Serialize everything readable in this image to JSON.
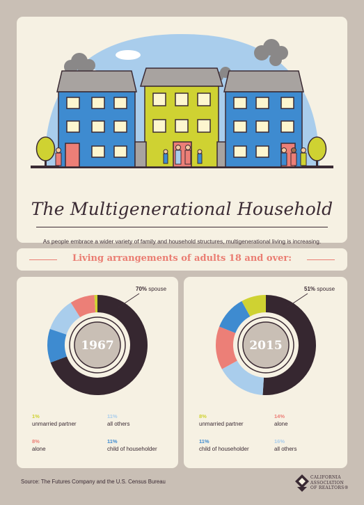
{
  "hero": {
    "title": "The Multigenerational Household",
    "intro": "As people embrace a wider variety of family and household structures, multigenerational living is increasing."
  },
  "banner": {
    "heading": "Living arrangements of adults 18 and over:"
  },
  "colors": {
    "spouse": "#362730",
    "child_of_householder": "#3e8bd0",
    "all_others": "#a9cdec",
    "alone": "#ec7f77",
    "unmarried_partner": "#cfd232",
    "accent": "#ea7d72",
    "card": "#f6f1e3",
    "background": "#c9bfb5"
  },
  "chart_data": [
    {
      "type": "pie",
      "title": "1967",
      "categories": [
        "spouse",
        "child of householder",
        "all others",
        "alone",
        "unmarried partner"
      ],
      "values": [
        70,
        11,
        11,
        8,
        1
      ],
      "annotation": "70% spouse",
      "legend": [
        {
          "pct": "1%",
          "label": "unmarried partner",
          "color": "#cfd232"
        },
        {
          "pct": "11%",
          "label": "all others",
          "color": "#a9cdec"
        },
        {
          "pct": "8%",
          "label": "alone",
          "color": "#ec7f77"
        },
        {
          "pct": "11%",
          "label": "child of householder",
          "color": "#3e8bd0"
        }
      ]
    },
    {
      "type": "pie",
      "title": "2015",
      "categories": [
        "spouse",
        "all others",
        "alone",
        "child of householder",
        "unmarried partner"
      ],
      "values": [
        51,
        16,
        14,
        11,
        8
      ],
      "annotation": "51% spouse",
      "legend": [
        {
          "pct": "8%",
          "label": "unmarried partner",
          "color": "#cfd232"
        },
        {
          "pct": "14%",
          "label": "alone",
          "color": "#ec7f77"
        },
        {
          "pct": "11%",
          "label": "child of householder",
          "color": "#3e8bd0"
        },
        {
          "pct": "16%",
          "label": "all others",
          "color": "#a9cdec"
        }
      ]
    }
  ],
  "footer": {
    "source": "Source: The Futures Company and the U.S. Census Bureau",
    "logo_line1": "CALIFORNIA",
    "logo_line2": "ASSOCIATION",
    "logo_line3": "OF REALTORS®"
  }
}
